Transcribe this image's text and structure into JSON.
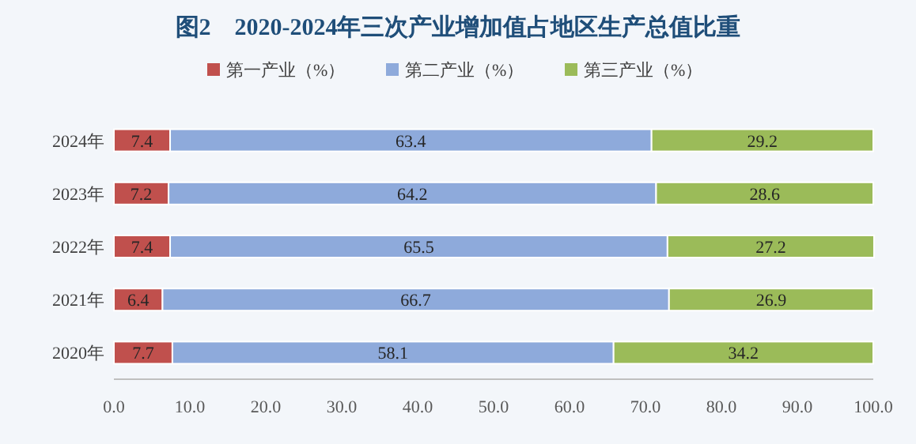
{
  "chart_data": {
    "type": "bar",
    "orientation": "horizontal",
    "stacked": true,
    "title": "图2　2020-2024年三次产业增加值占地区生产总值比重",
    "categories": [
      "2024年",
      "2023年",
      "2022年",
      "2021年",
      "2020年"
    ],
    "series": [
      {
        "name": "第一产业（%）",
        "color": "#c0504d",
        "values": [
          7.4,
          7.2,
          7.4,
          6.4,
          7.7
        ]
      },
      {
        "name": "第二产业（%）",
        "color": "#8eaadb",
        "values": [
          63.4,
          64.2,
          65.5,
          66.7,
          58.1
        ]
      },
      {
        "name": "第三产业（%）",
        "color": "#9bbb59",
        "values": [
          29.2,
          28.6,
          27.2,
          26.9,
          34.2
        ]
      }
    ],
    "xlim": [
      0,
      100
    ],
    "xticks": [
      {
        "value": 0,
        "label": "0.0"
      },
      {
        "value": 10,
        "label": "10.0"
      },
      {
        "value": 20,
        "label": "20.0"
      },
      {
        "value": 30,
        "label": "30.0"
      },
      {
        "value": 40,
        "label": "40.0"
      },
      {
        "value": 50,
        "label": "50.0"
      },
      {
        "value": 60,
        "label": "60.0"
      },
      {
        "value": 70,
        "label": "70.0"
      },
      {
        "value": 80,
        "label": "80.0"
      },
      {
        "value": 90,
        "label": "90.0"
      },
      {
        "value": 100,
        "label": "100.0"
      }
    ],
    "data_labels": true,
    "legend": "top",
    "grid": false
  }
}
